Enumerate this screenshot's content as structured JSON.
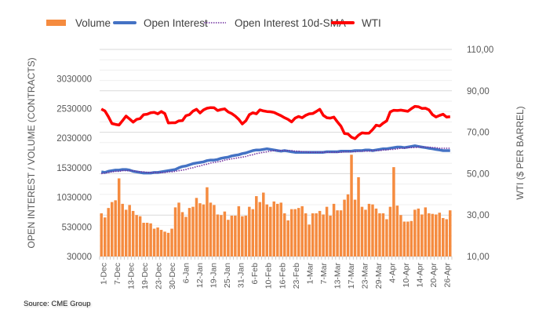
{
  "chart_data": {
    "type": "bar+line",
    "title": "",
    "source": "Source: CME Group",
    "legend": [
      {
        "name": "Volume",
        "kind": "bar",
        "color": "#F58B3F"
      },
      {
        "name": "Open Interest",
        "kind": "line",
        "color": "#4472C4"
      },
      {
        "name": "Open Interest 10d-SMA",
        "kind": "dotted-line",
        "color": "#7030A0"
      },
      {
        "name": "WTI",
        "kind": "line",
        "color": "#FF0000"
      }
    ],
    "legend_position": "top",
    "y_left": {
      "label": "OPEN INTEREST / VOLUME (CONTRACTS)",
      "range": [
        30000,
        3530000
      ],
      "ticks": [
        "30000",
        "530000",
        "1030000",
        "1530000",
        "2030000",
        "2530000",
        "3030000"
      ]
    },
    "y_right": {
      "label": "WTI ($ PER BARREL)",
      "range": [
        10,
        110
      ],
      "ticks": [
        "10,00",
        "30,00",
        "50,00",
        "70,00",
        "90,00",
        "110,00"
      ]
    },
    "x_tick_labels": [
      "1-Dec",
      "7-Dec",
      "13-Dec",
      "19-Dec",
      "23-Dec",
      "30-Dec",
      "6-Jan",
      "12-Jan",
      "19-Jan",
      "25-Jan",
      "31-Jan",
      "6-Feb",
      "10-Feb",
      "16-Feb",
      "23-Feb",
      "1-Mar",
      "7-Mar",
      "13-Mar",
      "17-Mar",
      "23-Mar",
      "29-Mar",
      "4-Apr",
      "10-Apr",
      "14-Apr",
      "20-Apr",
      "26-Apr"
    ],
    "grid": true,
    "series": {
      "volume": [
        760000,
        690000,
        850000,
        950000,
        980000,
        1350000,
        920000,
        820000,
        900000,
        800000,
        730000,
        710000,
        600000,
        600000,
        590000,
        500000,
        520000,
        480000,
        450000,
        430000,
        500000,
        860000,
        940000,
        780000,
        700000,
        850000,
        870000,
        1020000,
        930000,
        910000,
        1200000,
        940000,
        900000,
        740000,
        730000,
        790000,
        650000,
        720000,
        720000,
        880000,
        710000,
        720000,
        870000,
        830000,
        1050000,
        950000,
        1110000,
        910000,
        870000,
        960000,
        920000,
        940000,
        760000,
        640000,
        830000,
        830000,
        850000,
        880000,
        760000,
        570000,
        760000,
        760000,
        800000,
        740000,
        870000,
        720000,
        920000,
        810000,
        810000,
        990000,
        1080000,
        1750000,
        990000,
        1370000,
        870000,
        820000,
        920000,
        910000,
        840000,
        760000,
        760000,
        660000,
        870000,
        1540000,
        890000,
        730000,
        620000,
        620000,
        630000,
        820000,
        840000,
        740000,
        860000,
        760000,
        750000,
        740000,
        770000,
        680000,
        660000,
        810000
      ],
      "open_interest": [
        1460000,
        1450000,
        1470000,
        1480000,
        1490000,
        1490000,
        1500000,
        1500000,
        1490000,
        1470000,
        1460000,
        1450000,
        1440000,
        1440000,
        1440000,
        1450000,
        1450000,
        1460000,
        1470000,
        1480000,
        1490000,
        1500000,
        1530000,
        1550000,
        1560000,
        1580000,
        1600000,
        1610000,
        1620000,
        1630000,
        1650000,
        1660000,
        1660000,
        1670000,
        1690000,
        1700000,
        1710000,
        1730000,
        1740000,
        1750000,
        1770000,
        1780000,
        1800000,
        1820000,
        1830000,
        1830000,
        1840000,
        1850000,
        1840000,
        1830000,
        1820000,
        1810000,
        1820000,
        1810000,
        1800000,
        1790000,
        1790000,
        1790000,
        1790000,
        1790000,
        1790000,
        1790000,
        1790000,
        1790000,
        1800000,
        1800000,
        1800000,
        1800000,
        1810000,
        1810000,
        1810000,
        1810000,
        1820000,
        1820000,
        1820000,
        1830000,
        1830000,
        1820000,
        1830000,
        1840000,
        1850000,
        1850000,
        1860000,
        1870000,
        1880000,
        1880000,
        1870000,
        1880000,
        1890000,
        1900000,
        1890000,
        1880000,
        1870000,
        1860000,
        1850000,
        1840000,
        1830000,
        1820000,
        1820000,
        1820000
      ],
      "open_interest_sma": [
        1430000,
        1440000,
        1450000,
        1460000,
        1470000,
        1470000,
        1480000,
        1480000,
        1480000,
        1480000,
        1470000,
        1460000,
        1460000,
        1450000,
        1450000,
        1450000,
        1450000,
        1450000,
        1450000,
        1460000,
        1460000,
        1470000,
        1480000,
        1490000,
        1500000,
        1520000,
        1530000,
        1550000,
        1560000,
        1580000,
        1590000,
        1610000,
        1620000,
        1630000,
        1640000,
        1660000,
        1670000,
        1680000,
        1690000,
        1700000,
        1710000,
        1720000,
        1740000,
        1750000,
        1770000,
        1780000,
        1790000,
        1800000,
        1810000,
        1820000,
        1820000,
        1820000,
        1820000,
        1820000,
        1820000,
        1810000,
        1810000,
        1800000,
        1800000,
        1790000,
        1790000,
        1790000,
        1790000,
        1790000,
        1790000,
        1790000,
        1790000,
        1790000,
        1790000,
        1800000,
        1800000,
        1800000,
        1800000,
        1810000,
        1810000,
        1810000,
        1810000,
        1820000,
        1820000,
        1820000,
        1830000,
        1830000,
        1840000,
        1840000,
        1850000,
        1860000,
        1860000,
        1870000,
        1870000,
        1870000,
        1880000,
        1880000,
        1880000,
        1880000,
        1870000,
        1870000,
        1860000,
        1860000,
        1860000,
        1860000
      ],
      "wti": [
        81.2,
        80.3,
        77.5,
        74.2,
        73.8,
        73.5,
        75.6,
        77.8,
        76.4,
        74.9,
        76.2,
        76.6,
        78.5,
        78.7,
        79.4,
        79.6,
        78.9,
        80.0,
        79.0,
        74.5,
        74.6,
        74.6,
        75.5,
        75.6,
        78.0,
        78.5,
        80.2,
        81.1,
        79.3,
        80.8,
        81.6,
        81.9,
        81.8,
        80.5,
        81.0,
        81.3,
        79.8,
        79.0,
        77.8,
        76.2,
        74.0,
        75.5,
        78.5,
        79.4,
        78.9,
        80.8,
        80.3,
        80.0,
        79.9,
        79.6,
        78.8,
        78.0,
        77.0,
        76.2,
        75.0,
        76.8,
        77.6,
        77.0,
        78.2,
        78.9,
        79.0,
        80.0,
        81.1,
        78.2,
        77.0,
        76.8,
        77.3,
        75.0,
        72.9,
        69.4,
        69.2,
        67.6,
        66.9,
        68.6,
        69.7,
        69.5,
        69.6,
        71.3,
        73.4,
        73.0,
        74.4,
        75.5,
        79.8,
        80.6,
        80.5,
        80.7,
        80.4,
        80.1,
        81.4,
        82.5,
        82.3,
        81.5,
        81.6,
        80.8,
        78.5,
        77.4,
        78.1,
        78.7,
        77.3,
        77.5
      ]
    }
  }
}
